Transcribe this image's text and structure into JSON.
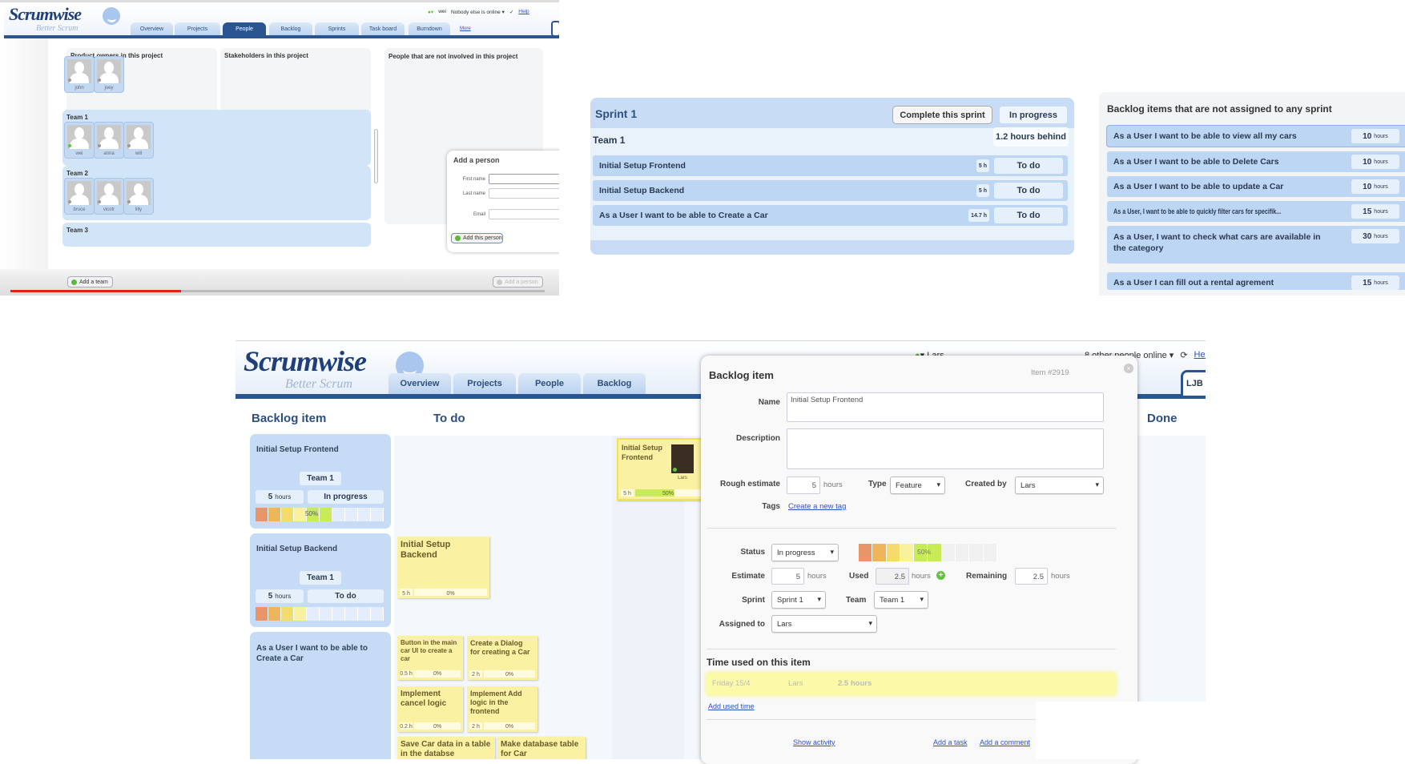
{
  "people_screen": {
    "logo": "Scrumwise",
    "logo_sub": "Better Scrum",
    "tabs": [
      "Overview",
      "Projects",
      "People",
      "Backlog",
      "Sprints",
      "Task board",
      "Burndown"
    ],
    "active_tab": "People",
    "more_link": "More",
    "user": "wei",
    "online_status": "Nobody else is online ▾",
    "help": "Help",
    "product_owners_title": "Product owners in this project",
    "product_owners": [
      "john",
      "joey"
    ],
    "stakeholders_title": "Stakeholders in this project",
    "not_involved_title": "People that are not involved in this project",
    "teams": [
      {
        "name": "Team 1",
        "members": [
          {
            "name": "wei",
            "online": true
          },
          {
            "name": "anna",
            "online": false
          },
          {
            "name": "will",
            "online": false
          }
        ]
      },
      {
        "name": "Team 2",
        "members": [
          {
            "name": "bruce",
            "online": false
          },
          {
            "name": "vicotr",
            "online": false
          },
          {
            "name": "lilly",
            "online": false
          }
        ]
      },
      {
        "name": "Team 3",
        "members": []
      }
    ],
    "add_person": {
      "title": "Add a person",
      "first_name": "First name",
      "last_name": "Last name",
      "email": "Email",
      "submit": "Add this person"
    },
    "add_team": "Add a team",
    "add_person_button": "Add a person",
    "video_progress": 0.32
  },
  "sprint": {
    "title": "Sprint 1",
    "complete_button": "Complete this sprint",
    "status": "In progress",
    "team": "Team 1",
    "behind": "1.2 hours behind",
    "items": [
      {
        "name": "Initial Setup Frontend",
        "hours": "5 h",
        "status": "To do"
      },
      {
        "name": "Initial Setup Backend",
        "hours": "5 h",
        "status": "To do"
      },
      {
        "name": "As a User I want to be able to Create a Car",
        "hours": "14.7 h",
        "status": "To do"
      }
    ]
  },
  "unassigned": {
    "title": "Backlog items that are not assigned to any sprint",
    "unit": "hours",
    "items": [
      {
        "name": "As a User I want to be able to view all my cars",
        "hours": "10"
      },
      {
        "name": "As a User I want to be able to Delete Cars",
        "hours": "10"
      },
      {
        "name": "As a User I want to be able to update a Car",
        "hours": "10"
      },
      {
        "name": "As a User, I want to be able to quickly filter cars for specifik...",
        "hours": "15"
      },
      {
        "name": "As a User, I want to check what cars are available in the category",
        "hours": "30"
      },
      {
        "name": "As a User I can fill out a rental agrement",
        "hours": "15"
      }
    ]
  },
  "board": {
    "logo": "Scrumwise",
    "logo_sub": "Better Scrum",
    "tabs": [
      "Overview",
      "Projects",
      "People",
      "Backlog"
    ],
    "user": "Lars",
    "online": "8 other people online ▾",
    "help": "Help",
    "project_box": "LJB",
    "columns": {
      "backlog": "Backlog item",
      "todo": "To do",
      "done": "Done"
    },
    "progress_colors": [
      "#e8956a",
      "#efb55c",
      "#f5db6c",
      "#f8f29c",
      "#c8ec58"
    ],
    "backlog_cards": [
      {
        "name": "Initial Setup Frontend",
        "team": "Team 1",
        "hours": "5",
        "unit": "hours",
        "status": "In progress",
        "progress": 50,
        "label": "50%"
      },
      {
        "name": "Initial Setup Backend",
        "team": "Team 1",
        "hours": "5",
        "unit": "hours",
        "status": "To do",
        "progress": 0,
        "label": ""
      },
      {
        "name": "As a User I want to be able to Create a Car"
      }
    ],
    "notes": [
      {
        "name": "Initial Setup Backend",
        "hours": "5 h",
        "progress": "0%"
      },
      {
        "name": "Button in the main car UI to create a car",
        "hours": "0.5 h",
        "progress": "0%"
      },
      {
        "name": "Create a Dialog for creating a Car",
        "hours": "2 h",
        "progress": "0%"
      },
      {
        "name": "Implement cancel logic",
        "hours": "0.2 h",
        "progress": "0%"
      },
      {
        "name": "Implement Add logic in the frontend",
        "hours": "2 h",
        "progress": "0%"
      },
      {
        "name": "Save Car data in a table in the databse",
        "hours": "",
        "progress": ""
      },
      {
        "name": "Make database table for Car",
        "hours": "",
        "progress": ""
      }
    ],
    "inprogress_note": {
      "name": "Initial Setup Frontend",
      "hours": "5 h",
      "progress": "50%",
      "assignee": "Lars"
    }
  },
  "modal": {
    "title": "Backlog item",
    "item_id": "Item #2919",
    "name_label": "Name",
    "name_value": "Initial Setup Frontend",
    "description_label": "Description",
    "description_value": "",
    "rough_label": "Rough estimate",
    "rough_value": "5",
    "hours": "hours",
    "type_label": "Type",
    "type_value": "Feature",
    "created_label": "Created by",
    "created_value": "Lars",
    "tags_label": "Tags",
    "create_tag": "Create a new tag",
    "status_label": "Status",
    "status_value": "In progress",
    "progress": 50,
    "progress_label": "50%",
    "estimate_label": "Estimate",
    "estimate_value": "5",
    "used_label": "Used",
    "used_value": "2.5",
    "remaining_label": "Remaining",
    "remaining_value": "2.5",
    "sprint_label": "Sprint",
    "sprint_value": "Sprint 1",
    "team_label": "Team",
    "team_value": "Team 1",
    "assigned_label": "Assigned to",
    "assigned_value": "Lars",
    "time_title": "Time used on this item",
    "time_entries": [
      {
        "date": "Friday 15/4",
        "person": "Lars",
        "amount": "2.5 hours"
      }
    ],
    "add_used_time": "Add used time",
    "show_activity": "Show activity",
    "add_task": "Add a task",
    "add_comment": "Add a comment"
  }
}
